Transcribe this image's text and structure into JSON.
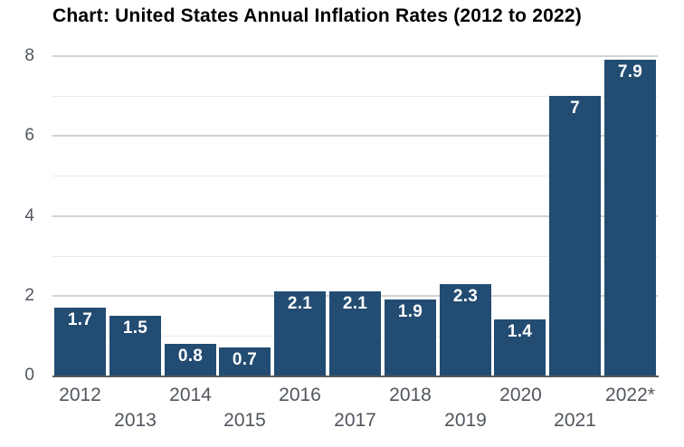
{
  "title": "Chart: United States Annual Inflation Rates (2012 to 2022)",
  "colors": {
    "background": "#ffffff",
    "bar": "#234c72",
    "bar_label": "#ffffff",
    "axis_line": "#5a5a5a",
    "major_gridline": "#d2d2d2",
    "minor_gridline": "#e9e9e9",
    "tick_label": "#50565e",
    "title_text": "#000000"
  },
  "chart_data": {
    "type": "bar",
    "title": "Chart: United States Annual Inflation Rates (2012 to 2022)",
    "categories": [
      "2012",
      "2013",
      "2014",
      "2015",
      "2016",
      "2017",
      "2018",
      "2019",
      "2020",
      "2021",
      "2022*"
    ],
    "values": [
      1.7,
      1.5,
      0.8,
      0.7,
      2.1,
      2.1,
      1.9,
      2.3,
      1.4,
      7,
      7.9
    ],
    "value_labels": [
      "1.7",
      "1.5",
      "0.8",
      "0.7",
      "2.1",
      "2.1",
      "1.9",
      "2.3",
      "1.4",
      "7",
      "7.9"
    ],
    "xlabel": "",
    "ylabel": "",
    "ylim": [
      0,
      8
    ],
    "yticks": [
      0,
      2,
      4,
      6,
      8
    ],
    "minor_gridlines": [
      1,
      3,
      5,
      7
    ],
    "grid": true,
    "legend_position": "none",
    "bar_label_position": "inside-top",
    "x_tick_layout": "staggered-two-rows"
  }
}
